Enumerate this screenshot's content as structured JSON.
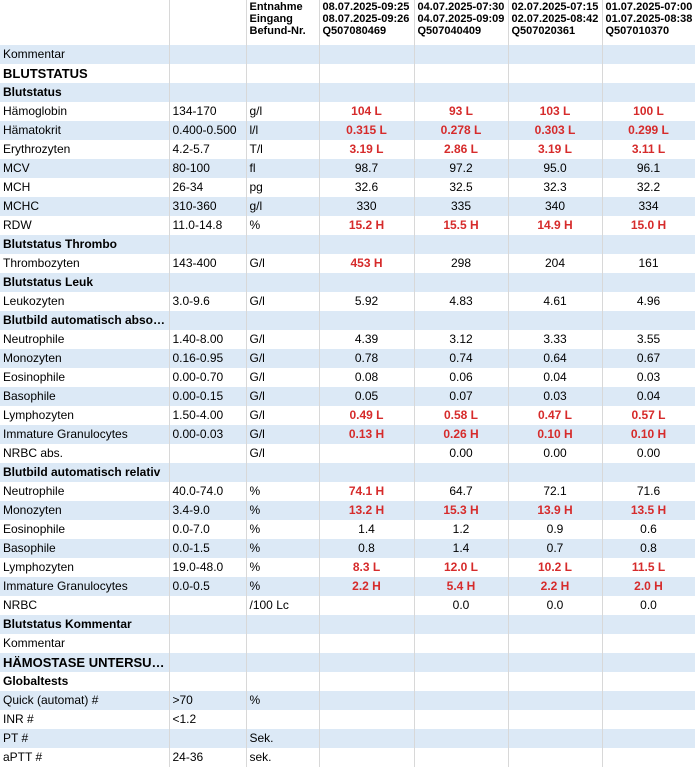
{
  "header": {
    "labels": [
      "Entnahme",
      "Eingang",
      "Befund-Nr."
    ],
    "columns": [
      {
        "entnahme": "08.07.2025-09:25",
        "eingang": "08.07.2025-09:26",
        "befund": "Q507080469"
      },
      {
        "entnahme": "04.07.2025-07:30",
        "eingang": "04.07.2025-09:09",
        "befund": "Q507040409"
      },
      {
        "entnahme": "02.07.2025-07:15",
        "eingang": "02.07.2025-08:42",
        "befund": "Q507020361"
      },
      {
        "entnahme": "01.07.2025-07:00",
        "eingang": "01.07.2025-08:38",
        "befund": "Q507010370"
      }
    ]
  },
  "rows": [
    {
      "name": "Kommentar",
      "ref": "",
      "unit": "",
      "values": [
        "",
        "",
        "",
        ""
      ],
      "flags": [
        false,
        false,
        false,
        false
      ]
    },
    {
      "name": "BLUTSTATUS",
      "section": true,
      "big": true
    },
    {
      "name": "Blutstatus",
      "section": true
    },
    {
      "name": "Hämoglobin",
      "ref": "134-170",
      "unit": "g/l",
      "values": [
        "104 L",
        "93 L",
        "103 L",
        "100 L"
      ],
      "flags": [
        true,
        true,
        true,
        true
      ]
    },
    {
      "name": "Hämatokrit",
      "ref": "0.400-0.500",
      "unit": "l/l",
      "values": [
        "0.315 L",
        "0.278 L",
        "0.303 L",
        "0.299 L"
      ],
      "flags": [
        true,
        true,
        true,
        true
      ]
    },
    {
      "name": "Erythrozyten",
      "ref": "4.2-5.7",
      "unit": "T/l",
      "values": [
        "3.19 L",
        "2.86 L",
        "3.19 L",
        "3.11 L"
      ],
      "flags": [
        true,
        true,
        true,
        true
      ]
    },
    {
      "name": "MCV",
      "ref": "80-100",
      "unit": "fl",
      "values": [
        "98.7",
        "97.2",
        "95.0",
        "96.1"
      ],
      "flags": [
        false,
        false,
        false,
        false
      ]
    },
    {
      "name": "MCH",
      "ref": "26-34",
      "unit": "pg",
      "values": [
        "32.6",
        "32.5",
        "32.3",
        "32.2"
      ],
      "flags": [
        false,
        false,
        false,
        false
      ]
    },
    {
      "name": "MCHC",
      "ref": "310-360",
      "unit": "g/l",
      "values": [
        "330",
        "335",
        "340",
        "334"
      ],
      "flags": [
        false,
        false,
        false,
        false
      ]
    },
    {
      "name": "RDW",
      "ref": "11.0-14.8",
      "unit": "%",
      "values": [
        "15.2 H",
        "15.5 H",
        "14.9 H",
        "15.0 H"
      ],
      "flags": [
        true,
        true,
        true,
        true
      ]
    },
    {
      "name": "Blutstatus Thrombo",
      "section": true
    },
    {
      "name": "Thrombozyten",
      "ref": "143-400",
      "unit": "G/l",
      "values": [
        "453 H",
        "298",
        "204",
        "161"
      ],
      "flags": [
        true,
        false,
        false,
        false
      ]
    },
    {
      "name": "Blutstatus Leuk",
      "section": true
    },
    {
      "name": "Leukozyten",
      "ref": "3.0-9.6",
      "unit": "G/l",
      "values": [
        "5.92",
        "4.83",
        "4.61",
        "4.96"
      ],
      "flags": [
        false,
        false,
        false,
        false
      ]
    },
    {
      "name": "Blutbild automatisch absolut",
      "section": true
    },
    {
      "name": "Neutrophile",
      "ref": "1.40-8.00",
      "unit": "G/l",
      "values": [
        "4.39",
        "3.12",
        "3.33",
        "3.55"
      ],
      "flags": [
        false,
        false,
        false,
        false
      ]
    },
    {
      "name": "Monozyten",
      "ref": "0.16-0.95",
      "unit": "G/l",
      "values": [
        "0.78",
        "0.74",
        "0.64",
        "0.67"
      ],
      "flags": [
        false,
        false,
        false,
        false
      ]
    },
    {
      "name": "Eosinophile",
      "ref": "0.00-0.70",
      "unit": "G/l",
      "values": [
        "0.08",
        "0.06",
        "0.04",
        "0.03"
      ],
      "flags": [
        false,
        false,
        false,
        false
      ]
    },
    {
      "name": "Basophile",
      "ref": "0.00-0.15",
      "unit": "G/l",
      "values": [
        "0.05",
        "0.07",
        "0.03",
        "0.04"
      ],
      "flags": [
        false,
        false,
        false,
        false
      ]
    },
    {
      "name": "Lymphozyten",
      "ref": "1.50-4.00",
      "unit": "G/l",
      "values": [
        "0.49 L",
        "0.58 L",
        "0.47 L",
        "0.57 L"
      ],
      "flags": [
        true,
        true,
        true,
        true
      ]
    },
    {
      "name": "Immature Granulocytes",
      "ref": "0.00-0.03",
      "unit": "G/l",
      "values": [
        "0.13 H",
        "0.26 H",
        "0.10 H",
        "0.10 H"
      ],
      "flags": [
        true,
        true,
        true,
        true
      ]
    },
    {
      "name": "NRBC abs.",
      "ref": "",
      "unit": "G/l",
      "values": [
        "",
        "0.00",
        "0.00",
        "0.00"
      ],
      "flags": [
        false,
        false,
        false,
        false
      ]
    },
    {
      "name": "Blutbild automatisch relativ",
      "section": true
    },
    {
      "name": "Neutrophile",
      "ref": "40.0-74.0",
      "unit": "%",
      "values": [
        "74.1 H",
        "64.7",
        "72.1",
        "71.6"
      ],
      "flags": [
        true,
        false,
        false,
        false
      ]
    },
    {
      "name": "Monozyten",
      "ref": "3.4-9.0",
      "unit": "%",
      "values": [
        "13.2 H",
        "15.3 H",
        "13.9 H",
        "13.5 H"
      ],
      "flags": [
        true,
        true,
        true,
        true
      ]
    },
    {
      "name": "Eosinophile",
      "ref": "0.0-7.0",
      "unit": "%",
      "values": [
        "1.4",
        "1.2",
        "0.9",
        "0.6"
      ],
      "flags": [
        false,
        false,
        false,
        false
      ]
    },
    {
      "name": "Basophile",
      "ref": "0.0-1.5",
      "unit": "%",
      "values": [
        "0.8",
        "1.4",
        "0.7",
        "0.8"
      ],
      "flags": [
        false,
        false,
        false,
        false
      ]
    },
    {
      "name": "Lymphozyten",
      "ref": "19.0-48.0",
      "unit": "%",
      "values": [
        "8.3 L",
        "12.0 L",
        "10.2 L",
        "11.5 L"
      ],
      "flags": [
        true,
        true,
        true,
        true
      ]
    },
    {
      "name": "Immature Granulocytes",
      "ref": "0.0-0.5",
      "unit": "%",
      "values": [
        "2.2 H",
        "5.4 H",
        "2.2 H",
        "2.0 H"
      ],
      "flags": [
        true,
        true,
        true,
        true
      ]
    },
    {
      "name": "NRBC",
      "ref": "",
      "unit": "/100 Lc",
      "values": [
        "",
        "0.0",
        "0.0",
        "0.0"
      ],
      "flags": [
        false,
        false,
        false,
        false
      ]
    },
    {
      "name": "Blutstatus Kommentar",
      "section": true
    },
    {
      "name": "Kommentar",
      "ref": "",
      "unit": "",
      "values": [
        "",
        "",
        "",
        ""
      ],
      "flags": [
        false,
        false,
        false,
        false
      ]
    },
    {
      "name": "HÄMOSTASE UNTERSUC...",
      "section": true,
      "big": true
    },
    {
      "name": "Globaltests",
      "section": true
    },
    {
      "name": "Quick (automat) #",
      "ref": ">70",
      "unit": "%",
      "values": [
        "",
        "",
        "",
        ""
      ],
      "flags": [
        false,
        false,
        false,
        false
      ]
    },
    {
      "name": "INR #",
      "ref": "<1.2",
      "unit": "",
      "values": [
        "",
        "",
        "",
        ""
      ],
      "flags": [
        false,
        false,
        false,
        false
      ]
    },
    {
      "name": "PT #",
      "ref": "",
      "unit": "Sek.",
      "values": [
        "",
        "",
        "",
        ""
      ],
      "flags": [
        false,
        false,
        false,
        false
      ]
    },
    {
      "name": "aPTT #",
      "ref": "24-36",
      "unit": "sek.",
      "values": [
        "",
        "",
        "",
        ""
      ],
      "flags": [
        false,
        false,
        false,
        false
      ]
    }
  ]
}
